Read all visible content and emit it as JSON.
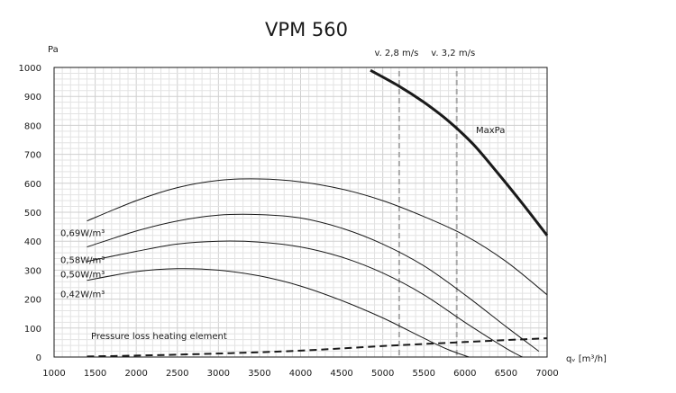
{
  "chart_data": {
    "type": "line",
    "title": "VPM 560",
    "ylabel": "Pa",
    "xlabel": "qᵥ [m³/h]",
    "xlim": [
      1000,
      7000
    ],
    "ylim": [
      0,
      1000
    ],
    "x_ticks": [
      1000,
      1500,
      2000,
      2500,
      3000,
      3500,
      4000,
      4500,
      5000,
      5500,
      6000,
      6500,
      7000
    ],
    "y_ticks": [
      0,
      100,
      200,
      300,
      400,
      500,
      600,
      700,
      800,
      900,
      1000
    ],
    "grid": true,
    "series": [
      {
        "name": "MaxPa",
        "style": "bold",
        "x": [
          4850,
          5200,
          5500,
          5800,
          6100,
          6400,
          6700,
          7000
        ],
        "y": [
          990,
          935,
          880,
          815,
          735,
          635,
          530,
          420
        ]
      },
      {
        "name": "0,69W/m³",
        "style": "thin",
        "x": [
          1400,
          2000,
          2500,
          3000,
          3500,
          4000,
          4500,
          5000,
          5500,
          6000,
          6500,
          7000
        ],
        "y": [
          470,
          540,
          585,
          610,
          615,
          605,
          580,
          540,
          485,
          420,
          330,
          215
        ]
      },
      {
        "name": "0,58W/m³",
        "style": "thin",
        "x": [
          1400,
          2000,
          2500,
          3000,
          3500,
          4000,
          4500,
          5000,
          5500,
          6000,
          6500,
          6900
        ],
        "y": [
          380,
          435,
          470,
          490,
          492,
          480,
          445,
          390,
          315,
          215,
          105,
          20
        ]
      },
      {
        "name": "0,50W/m³",
        "style": "thin",
        "x": [
          1400,
          2000,
          2500,
          3000,
          3500,
          4000,
          4500,
          5000,
          5500,
          6000,
          6500,
          6700
        ],
        "y": [
          330,
          365,
          390,
          400,
          397,
          380,
          345,
          290,
          215,
          120,
          30,
          0
        ]
      },
      {
        "name": "0,42W/m³",
        "style": "thin",
        "x": [
          1400,
          2000,
          2500,
          3000,
          3500,
          4000,
          4500,
          5000,
          5500,
          5800,
          6050
        ],
        "y": [
          265,
          295,
          305,
          300,
          280,
          245,
          195,
          135,
          65,
          25,
          0
        ]
      },
      {
        "name": "Pressure loss heating element",
        "style": "dashed",
        "x": [
          1400,
          2000,
          3000,
          4000,
          5000,
          6000,
          7000
        ],
        "y": [
          2,
          5,
          12,
          22,
          38,
          52,
          65
        ]
      }
    ],
    "reference_lines": [
      {
        "label": "v. 2,8 m/s",
        "x": 5200
      },
      {
        "label": "v. 3,2 m/s",
        "x": 5900
      }
    ],
    "annotations": {
      "maxpa_label": "MaxPa",
      "loss_label": "Pressure loss heating element",
      "series_labels": [
        "0,69W/m³",
        "0,58W/m³",
        "0,50W/m³",
        "0,42W/m³"
      ]
    }
  }
}
